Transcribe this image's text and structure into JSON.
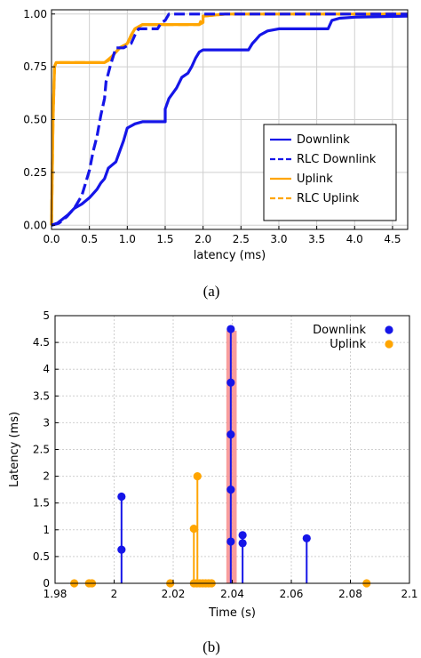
{
  "colors": {
    "downlink": "#1515e8",
    "uplink": "#ffa500",
    "highlight": "#f78c8c",
    "grid": "#cfcfcf"
  },
  "chart_data": [
    {
      "type": "line",
      "caption": "(a)",
      "xlabel": "latency (ms)",
      "ylabel": "",
      "xlim": [
        0,
        4.7
      ],
      "ylim": [
        -0.02,
        1.02
      ],
      "xticks": [
        "0.0",
        "0.5",
        "1.0",
        "1.5",
        "2.0",
        "2.5",
        "3.0",
        "3.5",
        "4.0",
        "4.5"
      ],
      "yticks": [
        "0.00",
        "0.25",
        "0.50",
        "0.75",
        "1.00"
      ],
      "grid": true,
      "legend_position": "bottom-right",
      "series": [
        {
          "name": "Downlink",
          "color": "#1515e8",
          "dash": false,
          "points": [
            [
              0,
              0
            ],
            [
              0.08,
              0.01
            ],
            [
              0.15,
              0.03
            ],
            [
              0.22,
              0.05
            ],
            [
              0.3,
              0.08
            ],
            [
              0.4,
              0.1
            ],
            [
              0.5,
              0.13
            ],
            [
              0.6,
              0.17
            ],
            [
              0.65,
              0.2
            ],
            [
              0.7,
              0.22
            ],
            [
              0.75,
              0.27
            ],
            [
              0.85,
              0.3
            ],
            [
              0.9,
              0.35
            ],
            [
              0.95,
              0.4
            ],
            [
              1.0,
              0.46
            ],
            [
              1.1,
              0.48
            ],
            [
              1.2,
              0.49
            ],
            [
              1.45,
              0.49
            ],
            [
              1.5,
              0.49
            ],
            [
              1.5,
              0.55
            ],
            [
              1.55,
              0.6
            ],
            [
              1.65,
              0.65
            ],
            [
              1.72,
              0.7
            ],
            [
              1.8,
              0.72
            ],
            [
              1.85,
              0.75
            ],
            [
              1.9,
              0.79
            ],
            [
              1.95,
              0.82
            ],
            [
              2.0,
              0.83
            ],
            [
              2.6,
              0.83
            ],
            [
              2.65,
              0.86
            ],
            [
              2.7,
              0.88
            ],
            [
              2.75,
              0.9
            ],
            [
              2.85,
              0.92
            ],
            [
              3.0,
              0.93
            ],
            [
              3.65,
              0.93
            ],
            [
              3.7,
              0.97
            ],
            [
              3.8,
              0.98
            ],
            [
              4.0,
              0.985
            ],
            [
              4.7,
              0.99
            ]
          ]
        },
        {
          "name": "RLC Downlink",
          "color": "#1515e8",
          "dash": true,
          "points": [
            [
              0,
              0
            ],
            [
              0.1,
              0.01
            ],
            [
              0.2,
              0.04
            ],
            [
              0.3,
              0.08
            ],
            [
              0.4,
              0.14
            ],
            [
              0.45,
              0.2
            ],
            [
              0.5,
              0.26
            ],
            [
              0.55,
              0.35
            ],
            [
              0.6,
              0.42
            ],
            [
              0.65,
              0.52
            ],
            [
              0.7,
              0.6
            ],
            [
              0.72,
              0.68
            ],
            [
              0.75,
              0.72
            ],
            [
              0.78,
              0.76
            ],
            [
              0.85,
              0.84
            ],
            [
              0.95,
              0.84
            ],
            [
              1.0,
              0.85
            ],
            [
              1.05,
              0.86
            ],
            [
              1.1,
              0.9
            ],
            [
              1.15,
              0.93
            ],
            [
              1.4,
              0.93
            ],
            [
              1.45,
              0.96
            ],
            [
              1.5,
              0.97
            ],
            [
              1.55,
              1.0
            ],
            [
              4.7,
              1.0
            ]
          ]
        },
        {
          "name": "Uplink",
          "color": "#ffa500",
          "dash": false,
          "points": [
            [
              0,
              0
            ],
            [
              0.02,
              0.5
            ],
            [
              0.04,
              0.75
            ],
            [
              0.06,
              0.77
            ],
            [
              0.2,
              0.77
            ],
            [
              0.7,
              0.77
            ],
            [
              0.75,
              0.78
            ],
            [
              0.8,
              0.8
            ],
            [
              0.85,
              0.82
            ],
            [
              0.9,
              0.84
            ],
            [
              1.0,
              0.86
            ],
            [
              1.05,
              0.9
            ],
            [
              1.1,
              0.93
            ],
            [
              1.15,
              0.94
            ],
            [
              1.2,
              0.95
            ],
            [
              1.5,
              0.95
            ],
            [
              1.95,
              0.95
            ],
            [
              2.0,
              0.96
            ],
            [
              2.0,
              0.99
            ],
            [
              2.3,
              1.0
            ],
            [
              4.7,
              1.0
            ]
          ]
        },
        {
          "name": "RLC Uplink",
          "color": "#ffa500",
          "dash": true,
          "points": [
            [
              0,
              0
            ],
            [
              0.02,
              0.5
            ],
            [
              0.04,
              0.75
            ],
            [
              0.06,
              0.77
            ],
            [
              0.7,
              0.77
            ],
            [
              0.8,
              0.8
            ],
            [
              0.9,
              0.84
            ],
            [
              1.0,
              0.86
            ],
            [
              1.1,
              0.93
            ],
            [
              1.2,
              0.95
            ],
            [
              1.95,
              0.95
            ],
            [
              2.0,
              0.99
            ],
            [
              2.3,
              1.0
            ],
            [
              4.7,
              1.0
            ]
          ]
        }
      ]
    },
    {
      "type": "scatter",
      "caption": "(b)",
      "xlabel": "Time (s)",
      "ylabel": "Latency (ms)",
      "xlim": [
        1.98,
        2.1
      ],
      "ylim": [
        0,
        5
      ],
      "xticks": [
        "1.98",
        "2",
        "2.02",
        "2.04",
        "2.06",
        "2.08",
        "2.1"
      ],
      "yticks": [
        "0",
        "0.5",
        "1",
        "1.5",
        "2",
        "2.5",
        "3",
        "3.5",
        "4",
        "4.5",
        "5"
      ],
      "grid": true,
      "legend_position": "top-right",
      "highlight_band": [
        2.038,
        2.0415
      ],
      "series": [
        {
          "name": "Downlink",
          "color": "#1515e8",
          "points": [
            [
              2.0025,
              1.62
            ],
            [
              2.0025,
              0.63
            ],
            [
              2.0395,
              4.75
            ],
            [
              2.0395,
              3.75
            ],
            [
              2.0395,
              2.78
            ],
            [
              2.0395,
              1.75
            ],
            [
              2.0395,
              0.78
            ],
            [
              2.0435,
              0.9
            ],
            [
              2.0435,
              0.75
            ],
            [
              2.0652,
              0.84
            ]
          ]
        },
        {
          "name": "Uplink",
          "color": "#ffa500",
          "points": [
            [
              1.9865,
              0
            ],
            [
              1.9915,
              0
            ],
            [
              1.9925,
              0
            ],
            [
              2.019,
              0
            ],
            [
              2.027,
              1.02
            ],
            [
              2.0282,
              2.0
            ],
            [
              2.027,
              0
            ],
            [
              2.028,
              0
            ],
            [
              2.029,
              0
            ],
            [
              2.03,
              0
            ],
            [
              2.031,
              0
            ],
            [
              2.032,
              0
            ],
            [
              2.033,
              0
            ],
            [
              2.0855,
              0
            ]
          ]
        }
      ]
    }
  ]
}
